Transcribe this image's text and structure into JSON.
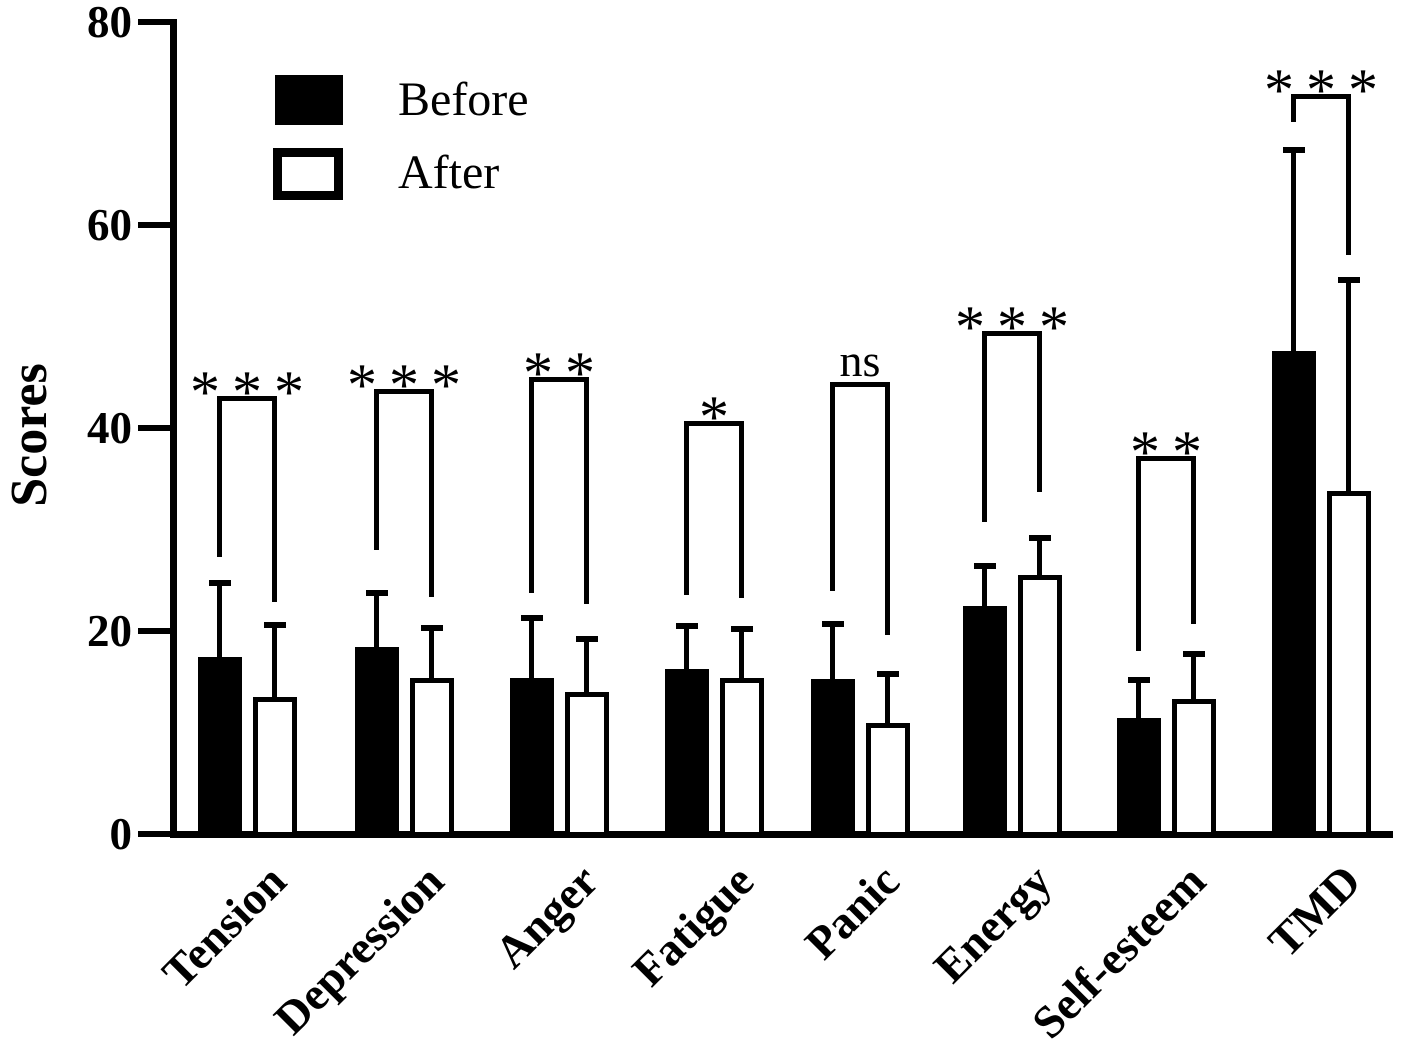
{
  "figure": {
    "background": "#ffffff",
    "ink_color": "#000000"
  },
  "chart_data": {
    "type": "bar",
    "title": "",
    "xlabel": "",
    "ylabel": "Scores",
    "ylim": [
      0,
      80
    ],
    "yticks": [
      "0",
      "20",
      "40",
      "60",
      "80"
    ],
    "grid": false,
    "legend_position": "upper left inside plot",
    "error_bars": "upper SD whiskers with caps",
    "categories": [
      "Tension",
      "Depression",
      "Anger",
      "Fatigue",
      "Panic",
      "Energy",
      "Self-esteem",
      "TMD"
    ],
    "series": [
      {
        "name": "Before",
        "style": "filled",
        "color": "#000000",
        "values": [
          17.4,
          18.4,
          15.4,
          16.3,
          15.3,
          22.5,
          11.4,
          47.6
        ],
        "sd_upper": [
          7.3,
          5.3,
          5.9,
          4.2,
          5.4,
          3.9,
          3.8,
          19.8
        ]
      },
      {
        "name": "After",
        "style": "open",
        "color": "#ffffff",
        "values": [
          13.5,
          15.4,
          14.0,
          15.4,
          10.9,
          25.5,
          13.3,
          33.8
        ],
        "sd_upper": [
          7.1,
          4.9,
          5.2,
          4.8,
          4.9,
          3.7,
          4.4,
          20.8
        ]
      }
    ],
    "significance": [
      {
        "category": "Tension",
        "label": "***",
        "bracket_y": 43.2,
        "left_leg_to": 27.3,
        "right_leg_to": 22.9
      },
      {
        "category": "Depression",
        "label": "***",
        "bracket_y": 43.8,
        "left_leg_to": 28.0,
        "right_leg_to": 23.3
      },
      {
        "category": "Anger",
        "label": "**",
        "bracket_y": 45.0,
        "left_leg_to": 23.7,
        "right_leg_to": 22.7
      },
      {
        "category": "Fatigue",
        "label": "*",
        "bracket_y": 40.7,
        "left_leg_to": 23.5,
        "right_leg_to": 23.3
      },
      {
        "category": "Panic",
        "label": "ns",
        "bracket_y": 44.5,
        "left_leg_to": 23.9,
        "right_leg_to": 19.6
      },
      {
        "category": "Energy",
        "label": "***",
        "bracket_y": 49.6,
        "left_leg_to": 30.7,
        "right_leg_to": 33.7
      },
      {
        "category": "Self-esteem",
        "label": "**",
        "bracket_y": 37.2,
        "left_leg_to": 18.0,
        "right_leg_to": 20.7
      },
      {
        "category": "TMD",
        "label": "***",
        "bracket_y": 72.9,
        "left_leg_to": 70.1,
        "right_leg_to": 57.0
      }
    ]
  }
}
